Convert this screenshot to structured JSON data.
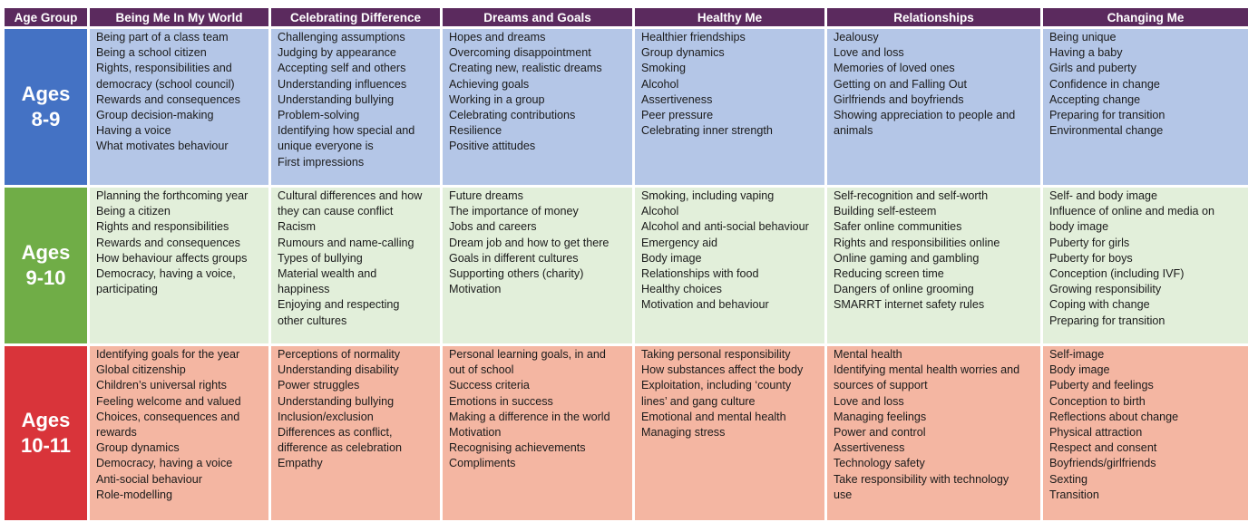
{
  "headers": [
    "Age Group",
    "Being Me In My World",
    "Celebrating Difference",
    "Dreams and Goals",
    "Healthy Me",
    "Relationships",
    "Changing Me"
  ],
  "colors": {
    "header": "#5b2a5e",
    "row1_age": "#4472c4",
    "row1_cells": "#b4c6e7",
    "row2_age": "#70ad47",
    "row2_cells": "#e2efda",
    "row3_age": "#d9343a",
    "row3_cells": "#f4b6a2"
  },
  "rows": [
    {
      "age_line1": "Ages",
      "age_line2": "8-9",
      "cells": [
        [
          "Being part of a class team",
          "Being a school citizen",
          "Rights, responsibilities and",
          "democracy (school council)",
          "Rewards and consequences",
          "Group decision-making",
          "Having a voice",
          "What motivates behaviour"
        ],
        [
          "Challenging assumptions",
          "Judging by appearance",
          "Accepting self and others",
          "Understanding influences",
          "Understanding bullying",
          "Problem-solving",
          "Identifying how special and",
          "unique everyone is",
          "First impressions"
        ],
        [
          "Hopes and dreams",
          "Overcoming disappointment",
          "Creating new, realistic dreams",
          "Achieving goals",
          "Working in a group",
          "Celebrating contributions",
          "Resilience",
          "Positive attitudes"
        ],
        [
          "Healthier friendships",
          "Group dynamics",
          "Smoking",
          "Alcohol",
          "Assertiveness",
          "Peer pressure",
          "Celebrating inner strength"
        ],
        [
          "Jealousy",
          "Love and loss",
          "Memories of loved ones",
          "Getting on and Falling Out",
          "Girlfriends and boyfriends",
          "Showing appreciation to people and",
          "animals"
        ],
        [
          "Being unique",
          "Having a baby",
          "Girls and puberty",
          "Confidence in change",
          "Accepting change",
          "Preparing for transition",
          "Environmental change"
        ]
      ]
    },
    {
      "age_line1": "Ages",
      "age_line2": "9-10",
      "cells": [
        [
          "Planning the forthcoming year",
          "Being a citizen",
          "Rights and responsibilities",
          "Rewards and consequences",
          "How behaviour affects groups",
          "Democracy, having a voice,",
          "participating"
        ],
        [
          "Cultural differences and how",
          "they can cause conflict",
          "Racism",
          "Rumours and name-calling",
          "Types of bullying",
          "Material wealth and",
          "happiness",
          "Enjoying and respecting",
          "other cultures"
        ],
        [
          "Future dreams",
          "The importance of money",
          "Jobs and careers",
          "Dream job and how to get there",
          "Goals in different cultures",
          "Supporting others (charity)",
          "Motivation"
        ],
        [
          "Smoking, including vaping",
          "Alcohol",
          "Alcohol and anti-social behaviour",
          "Emergency aid",
          "Body image",
          "Relationships with food",
          "Healthy choices",
          "Motivation and behaviour"
        ],
        [
          "Self-recognition and self-worth",
          "Building self-esteem",
          "Safer online communities",
          "Rights and responsibilities online",
          "Online gaming and gambling",
          "Reducing screen time",
          "Dangers of online grooming",
          "SMARRT internet safety rules"
        ],
        [
          "Self- and body image",
          "Influence of online and media on",
          "body image",
          "Puberty for girls",
          "Puberty for boys",
          "Conception (including IVF)",
          "Growing responsibility",
          "Coping with change",
          "Preparing for transition"
        ]
      ]
    },
    {
      "age_line1": "Ages",
      "age_line2": "10-11",
      "cells": [
        [
          "Identifying goals for the year",
          "Global citizenship",
          "Children’s universal rights",
          "Feeling welcome and valued",
          "Choices, consequences and",
          "rewards",
          "Group dynamics",
          "Democracy, having a voice",
          "Anti-social behaviour",
          "Role-modelling"
        ],
        [
          "Perceptions of normality",
          "Understanding disability",
          "Power struggles",
          "Understanding bullying",
          "Inclusion/exclusion",
          "Differences as conflict,",
          "difference as celebration",
          "Empathy"
        ],
        [
          "Personal learning goals, in and",
          "out of school",
          "Success criteria",
          "Emotions in success",
          "Making a difference in the world",
          "Motivation",
          "Recognising achievements",
          "Compliments"
        ],
        [
          "Taking personal responsibility",
          "How substances affect the body",
          "Exploitation, including ‘county",
          "lines’ and gang culture",
          "Emotional and mental health",
          "Managing stress"
        ],
        [
          "Mental health",
          "Identifying mental health worries and",
          "sources of support",
          "Love and loss",
          "Managing feelings",
          "Power and control",
          "Assertiveness",
          "Technology safety",
          "Take responsibility with technology",
          "use"
        ],
        [
          "Self-image",
          "Body image",
          "Puberty and feelings",
          "Conception to birth",
          "Reflections about change",
          "Physical attraction",
          "Respect and consent",
          "Boyfriends/girlfriends",
          "Sexting",
          "Transition"
        ]
      ]
    }
  ]
}
